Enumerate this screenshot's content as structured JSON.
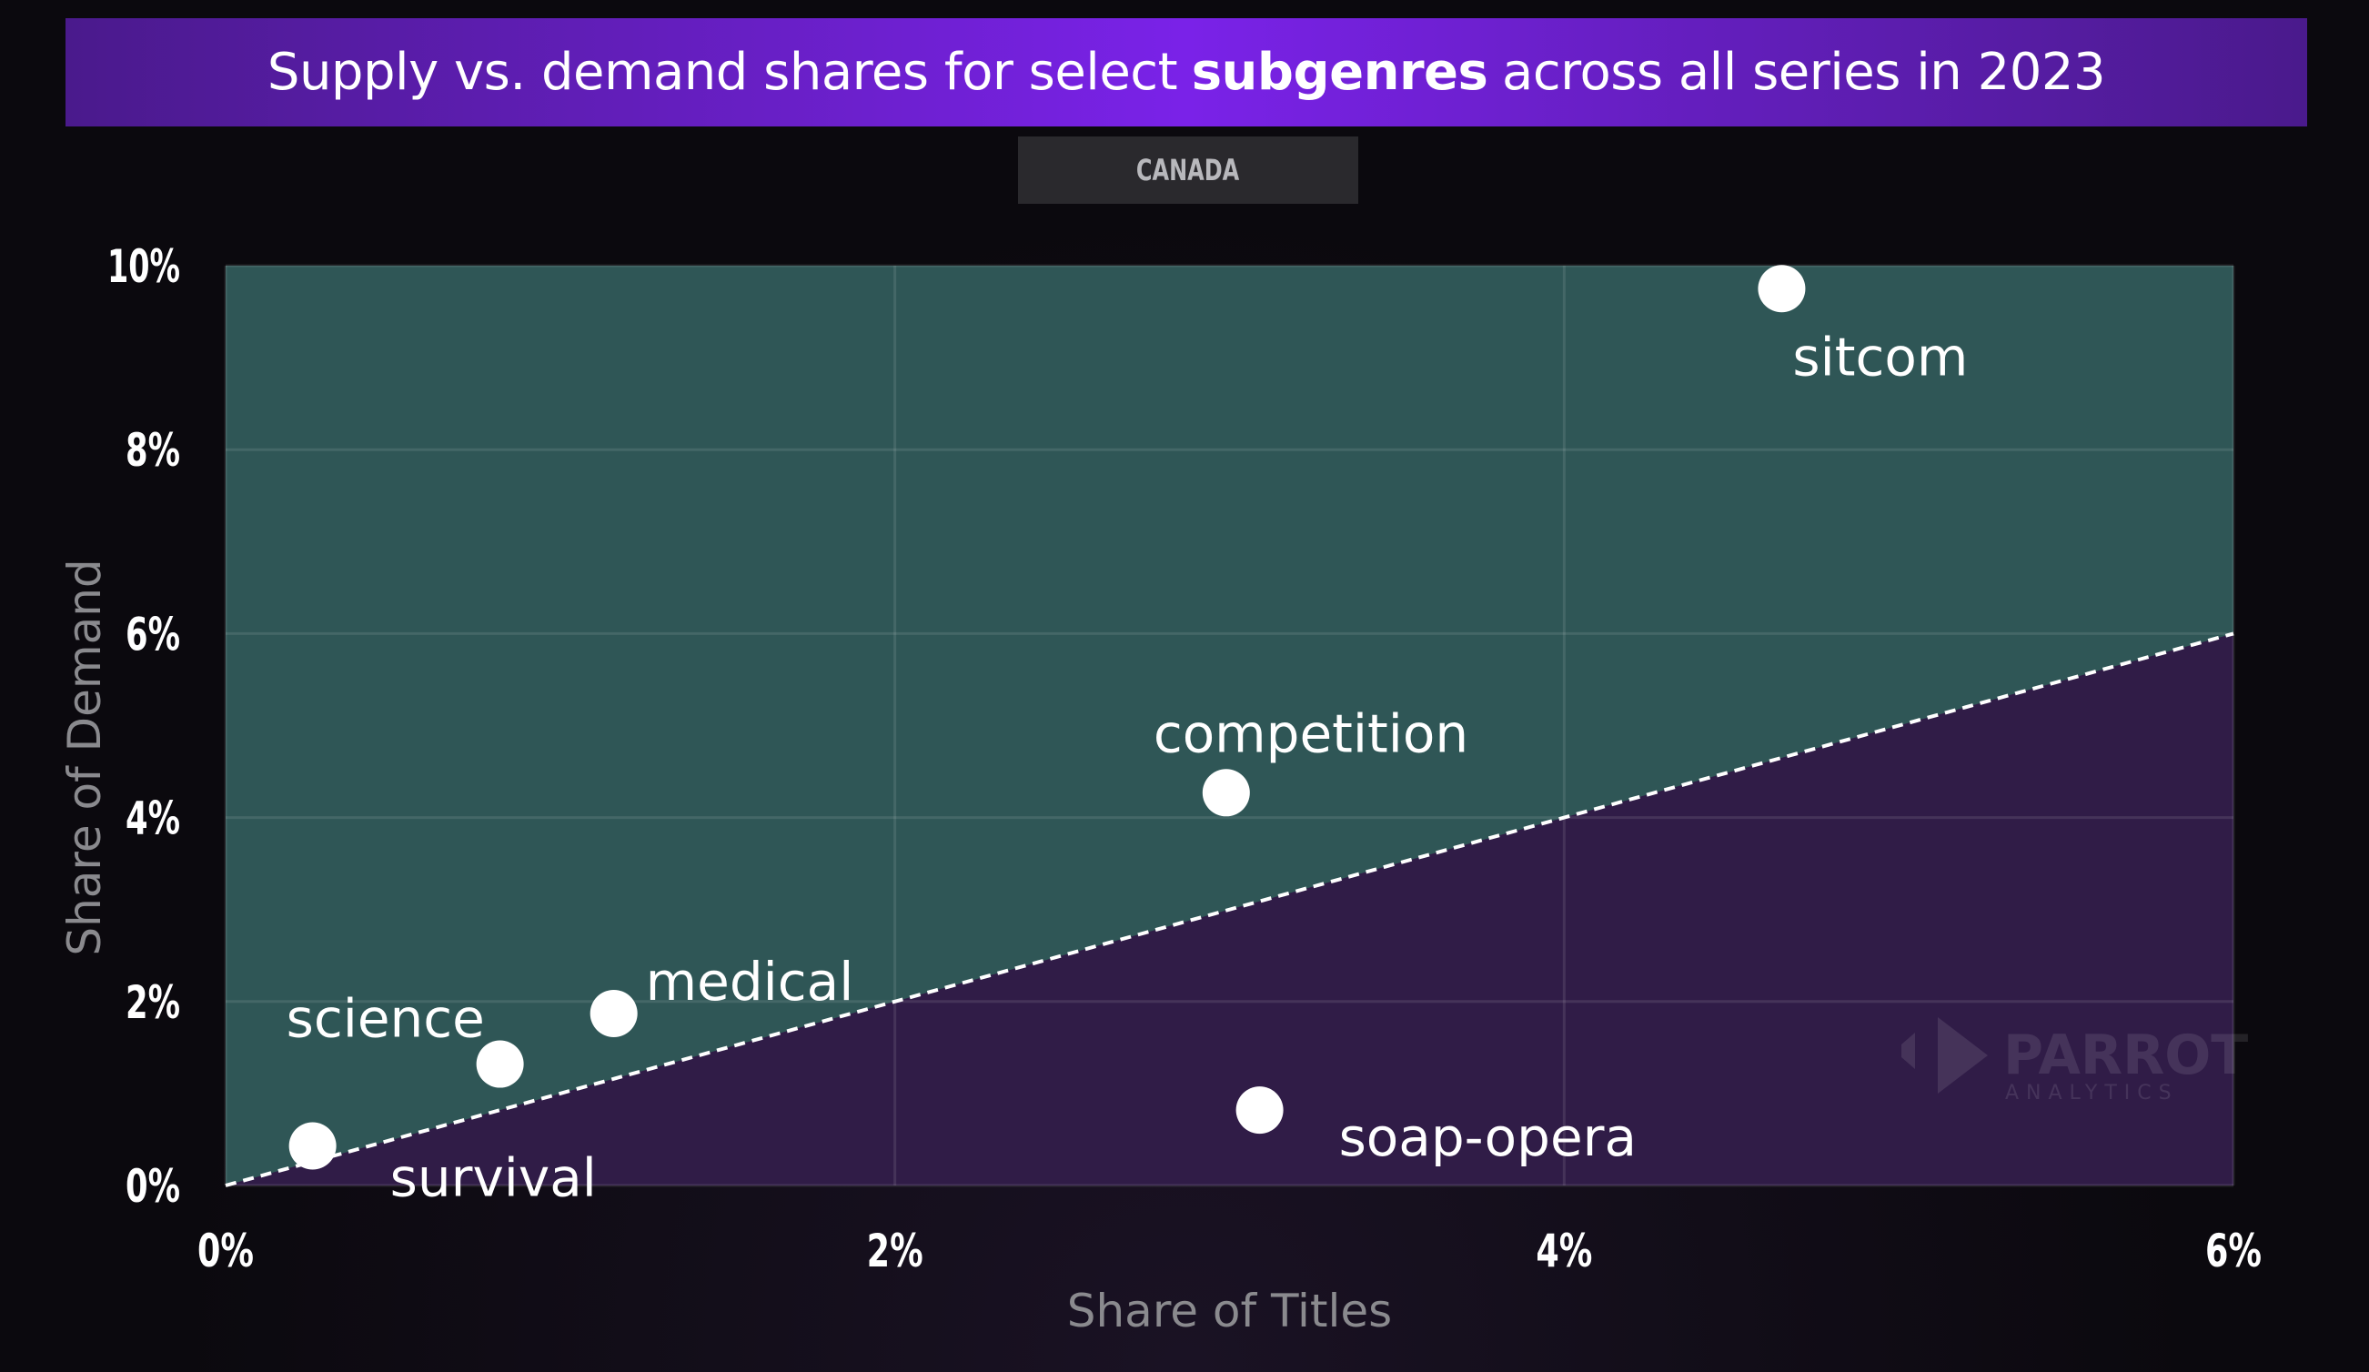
{
  "title": {
    "prefix": "Supply vs. demand shares for select",
    "bold": "subgenres",
    "suffix": "across all series in 2023"
  },
  "region_tab": "CANADA",
  "watermark": {
    "brand": "PARROT",
    "sub": "ANALYTICS"
  },
  "chart_data": {
    "type": "scatter",
    "xlabel": "Share of Titles",
    "ylabel": "Share of Demand",
    "xlim": [
      0,
      6
    ],
    "ylim": [
      0,
      10
    ],
    "x_ticks": [
      0,
      2,
      4,
      6
    ],
    "x_tick_labels": [
      "0%",
      "2%",
      "4%",
      "6%"
    ],
    "y_ticks": [
      0,
      2,
      4,
      6,
      8,
      10
    ],
    "y_tick_labels": [
      "0%",
      "2%",
      "4%",
      "6%",
      "8%",
      "10%"
    ],
    "grid": true,
    "reference_line": {
      "from": [
        0,
        0
      ],
      "to": [
        6,
        6
      ],
      "style": "dashed"
    },
    "region_colors": {
      "above": "#2f5656",
      "below": "#301c47"
    },
    "points": [
      {
        "label": "sitcom",
        "x": 4.65,
        "y": 9.75
      },
      {
        "label": "competition",
        "x": 2.99,
        "y": 4.27
      },
      {
        "label": "medical",
        "x": 1.16,
        "y": 1.87
      },
      {
        "label": "science",
        "x": 0.82,
        "y": 1.32
      },
      {
        "label": "survival",
        "x": 0.26,
        "y": 0.43
      },
      {
        "label": "soap-opera",
        "x": 3.09,
        "y": 0.82
      }
    ]
  }
}
